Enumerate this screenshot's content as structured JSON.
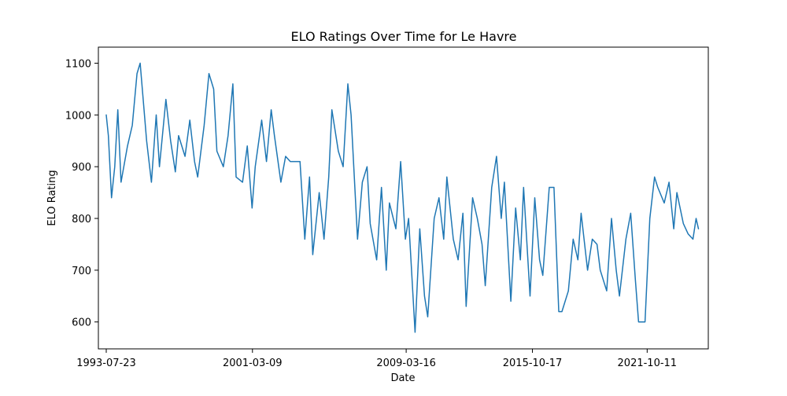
{
  "chart_data": {
    "type": "line",
    "title": "ELO Ratings Over Time for Le Havre",
    "xlabel": "Date",
    "ylabel": "ELO Rating",
    "xlim": [
      "1993-02-23",
      "2024-12-19"
    ],
    "ylim": [
      548,
      1131
    ],
    "grid": false,
    "x_ticks": [
      "1993-07-23",
      "2001-03-09",
      "2009-03-16",
      "2015-10-17",
      "2021-10-11"
    ],
    "y_ticks": [
      600,
      700,
      800,
      900,
      1000,
      1100
    ],
    "series": [
      {
        "color": "#1f77b4",
        "x": [
          "1993-07-23",
          "1993-09-01",
          "1993-11-01",
          "1994-01-01",
          "1994-03-01",
          "1994-05-01",
          "1994-09-01",
          "1994-12-01",
          "1995-03-01",
          "1995-05-01",
          "1995-09-01",
          "1995-12-01",
          "1996-03-01",
          "1996-05-01",
          "1996-09-01",
          "1996-12-01",
          "1997-03-01",
          "1997-05-01",
          "1997-09-01",
          "1997-12-01",
          "1998-03-01",
          "1998-05-01",
          "1998-09-01",
          "1998-12-01",
          "1999-03-01",
          "1999-05-01",
          "1999-09-01",
          "1999-12-01",
          "2000-03-01",
          "2000-05-01",
          "2000-09-01",
          "2000-12-01",
          "2001-03-01",
          "2001-05-01",
          "2001-09-01",
          "2001-12-01",
          "2002-03-01",
          "2002-05-01",
          "2002-09-01",
          "2002-12-01",
          "2003-03-01",
          "2003-05-01",
          "2003-09-01",
          "2003-12-01",
          "2004-03-01",
          "2004-05-01",
          "2004-09-01",
          "2004-12-01",
          "2005-03-01",
          "2005-05-01",
          "2005-09-01",
          "2005-12-01",
          "2006-03-01",
          "2006-05-01",
          "2006-09-01",
          "2006-12-01",
          "2007-03-01",
          "2007-05-01",
          "2007-09-01",
          "2007-12-01",
          "2008-03-01",
          "2008-05-01",
          "2008-09-01",
          "2008-12-01",
          "2009-03-01",
          "2009-05-01",
          "2009-09-01",
          "2009-12-01",
          "2010-03-01",
          "2010-05-01",
          "2010-09-01",
          "2010-12-01",
          "2011-03-01",
          "2011-05-01",
          "2011-09-01",
          "2011-12-01",
          "2012-03-01",
          "2012-05-01",
          "2012-09-01",
          "2012-12-01",
          "2013-03-01",
          "2013-05-01",
          "2013-09-01",
          "2013-12-01",
          "2014-03-01",
          "2014-05-01",
          "2014-09-01",
          "2014-12-01",
          "2015-03-01",
          "2015-05-01",
          "2015-09-01",
          "2015-12-01",
          "2016-03-01",
          "2016-05-01",
          "2016-09-01",
          "2016-12-01",
          "2017-03-01",
          "2017-05-01",
          "2017-09-01",
          "2017-12-01",
          "2018-03-01",
          "2018-05-01",
          "2018-09-01",
          "2018-12-01",
          "2019-03-01",
          "2019-05-01",
          "2019-09-01",
          "2019-12-01",
          "2020-03-01",
          "2020-05-01",
          "2020-09-01",
          "2020-12-01",
          "2021-03-01",
          "2021-05-01",
          "2021-09-01",
          "2021-12-01",
          "2022-03-01",
          "2022-05-01",
          "2022-09-01",
          "2022-12-01",
          "2023-03-01",
          "2023-05-01",
          "2023-09-01",
          "2023-12-01",
          "2024-03-01",
          "2024-05-01",
          "2024-06-15"
        ],
        "y": [
          1000,
          960,
          840,
          900,
          1010,
          870,
          940,
          980,
          1080,
          1100,
          950,
          870,
          1000,
          900,
          1030,
          950,
          890,
          960,
          920,
          990,
          910,
          880,
          980,
          1080,
          1050,
          930,
          900,
          960,
          1060,
          880,
          870,
          940,
          820,
          900,
          990,
          910,
          1010,
          960,
          870,
          920,
          910,
          910,
          910,
          760,
          880,
          730,
          850,
          760,
          880,
          1010,
          930,
          900,
          1060,
          1000,
          760,
          870,
          900,
          790,
          720,
          860,
          700,
          830,
          780,
          910,
          760,
          800,
          580,
          780,
          650,
          610,
          800,
          840,
          760,
          880,
          760,
          720,
          810,
          630,
          840,
          800,
          750,
          670,
          860,
          920,
          800,
          870,
          640,
          820,
          720,
          860,
          650,
          840,
          720,
          690,
          860,
          860,
          620,
          620,
          660,
          760,
          720,
          810,
          700,
          760,
          750,
          700,
          660,
          800,
          700,
          650,
          760,
          810,
          680,
          600,
          600,
          800,
          880,
          860,
          830,
          870,
          780,
          850,
          790,
          770,
          760,
          800,
          780
        ]
      }
    ]
  }
}
